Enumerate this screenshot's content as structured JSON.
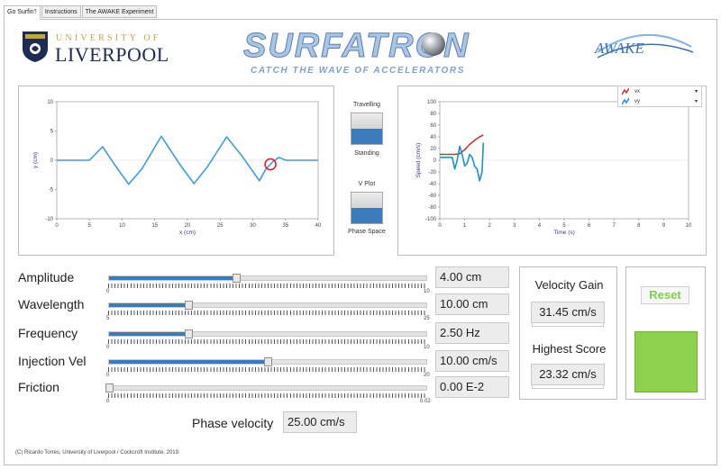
{
  "tabs": [
    {
      "label": "Go Surfin'!"
    },
    {
      "label": "Instructions"
    },
    {
      "label": "The AWAKE Experiment"
    }
  ],
  "header": {
    "university_top": "UNIVERSITY OF",
    "university_bottom": "LIVERPOOL",
    "app_title": "SURFATRON",
    "app_subtitle": "CATCH THE WAVE OF ACCELERATORS",
    "partner_logo": "AWAKE"
  },
  "toggles": {
    "mode": {
      "top_label": "Travelling",
      "bottom_label": "Standing",
      "state": "Standing"
    },
    "plot": {
      "top_label": "V Plot",
      "bottom_label": "Phase Space",
      "state": "Phase Space"
    }
  },
  "sliders": [
    {
      "label": "Amplitude",
      "min_label": "0",
      "max_label": "10",
      "fraction": 0.4,
      "value": "4.00 cm"
    },
    {
      "label": "Wavelength",
      "min_label": "5",
      "max_label": "25",
      "fraction": 0.25,
      "value": "10.00 cm"
    },
    {
      "label": "Frequency",
      "min_label": "0",
      "max_label": "10",
      "fraction": 0.25,
      "value": "2.50 Hz"
    },
    {
      "label": "Injection Vel",
      "min_label": "0",
      "max_label": "20",
      "fraction": 0.5,
      "value": "10.00 cm/s"
    },
    {
      "label": "Friction",
      "min_label": "0",
      "max_label": "0.02",
      "fraction": 0.0,
      "value": "0.00 E-2"
    }
  ],
  "phase_velocity": {
    "label": "Phase velocity",
    "value": "25.00 cm/s"
  },
  "score": {
    "velocity_gain_label": "Velocity Gain",
    "velocity_gain_value": "31.45 cm/s",
    "highest_score_label": "Highest Score",
    "highest_score_value": "23.32 cm/s"
  },
  "reset_label": "Reset",
  "status_color": "#8fd14f",
  "copyright": "(C) Ricardo Torres, University of Liverpool / Cockcroft Institute, 2019.",
  "chart_data": [
    {
      "type": "line",
      "xlabel": "x (cm)",
      "ylabel": "y (cm)",
      "xlim": [
        0,
        40
      ],
      "ylim": [
        -10,
        10
      ],
      "xticks": [
        "0",
        "5",
        "10",
        "15",
        "20",
        "25",
        "30",
        "35",
        "40"
      ],
      "yticks": [
        "10",
        "5",
        "0",
        "-5",
        "-10"
      ],
      "series": [
        {
          "color": "#3a9ee0",
          "x": [
            0,
            5,
            7,
            9,
            11,
            13,
            16,
            19,
            21,
            23,
            26,
            28.5,
            31,
            32,
            33,
            34,
            35,
            40
          ],
          "y": [
            0,
            0,
            2.3,
            -1,
            -4.1,
            -1.5,
            4.1,
            -1,
            -4,
            -1.2,
            4,
            0.5,
            -3.5,
            -1.5,
            -0.3,
            0.5,
            0,
            0
          ]
        }
      ],
      "marker": {
        "x": 32.7,
        "y": -0.7,
        "color": "#e11d1d"
      }
    },
    {
      "type": "line",
      "xlabel": "Time (s)",
      "ylabel": "Speed (cm/s)",
      "xlim": [
        0,
        10
      ],
      "ylim": [
        -100,
        100
      ],
      "xticks": [
        "0",
        "1",
        "2",
        "3",
        "4",
        "5",
        "6",
        "7",
        "8",
        "9",
        "10"
      ],
      "yticks": [
        "100",
        "80",
        "60",
        "40",
        "20",
        "0",
        "-20",
        "-40",
        "-60",
        "-80",
        "-100"
      ],
      "legend": {
        "position": "top-right"
      },
      "series": [
        {
          "name": "vx",
          "color": "#c0392b",
          "x": [
            0,
            0.5,
            0.6,
            0.8,
            1.0,
            1.2,
            1.4,
            1.6,
            1.75
          ],
          "y": [
            10,
            10,
            10,
            11,
            18,
            27,
            34,
            40,
            43
          ]
        },
        {
          "name": "vy",
          "color": "#1f8fd9",
          "x": [
            0,
            0.4,
            0.5,
            0.6,
            0.7,
            0.8,
            0.9,
            1.0,
            1.1,
            1.2,
            1.3,
            1.4,
            1.5,
            1.6,
            1.7,
            1.75
          ],
          "y": [
            5,
            5,
            5,
            -15,
            0,
            24,
            10,
            -10,
            -5,
            10,
            5,
            -10,
            -15,
            -35,
            -20,
            30
          ]
        }
      ]
    }
  ]
}
